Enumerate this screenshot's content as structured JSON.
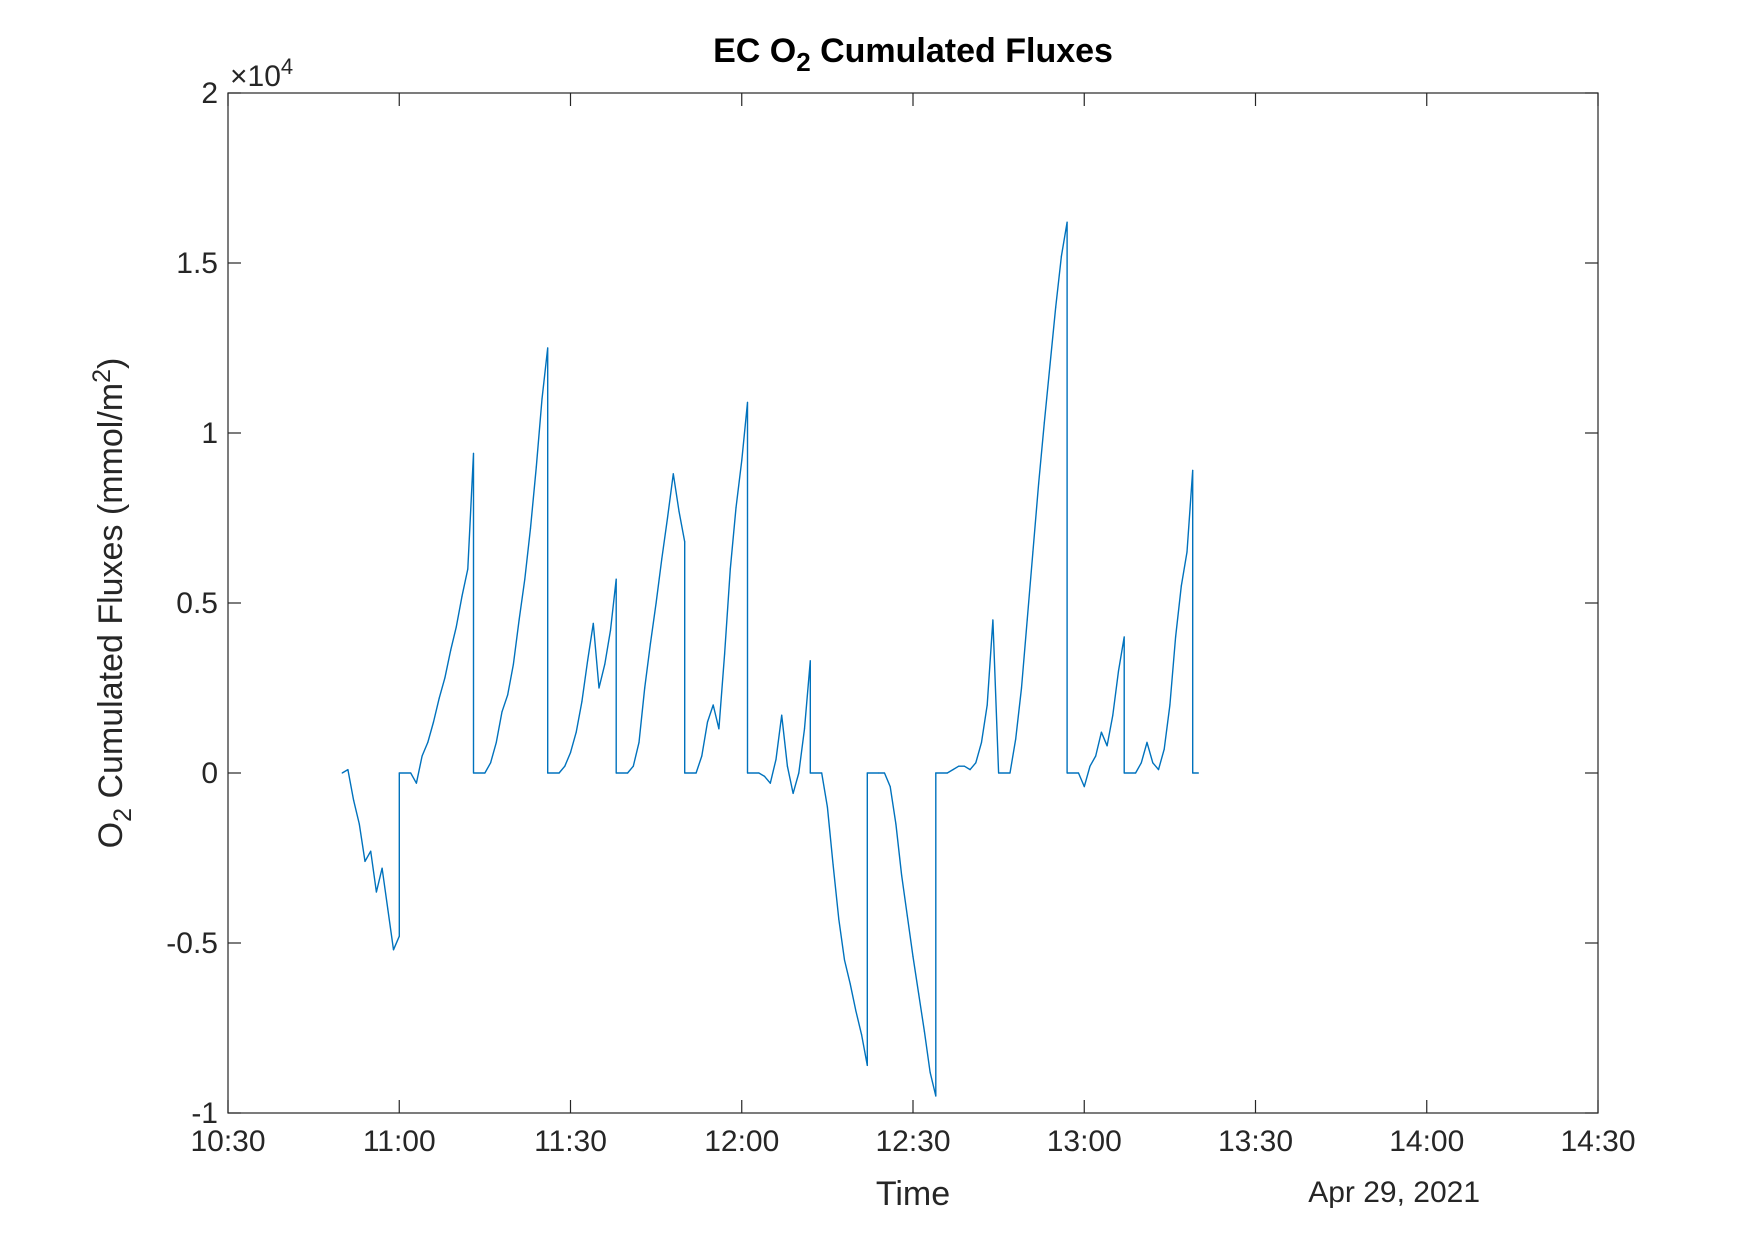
{
  "chart_data": {
    "type": "line",
    "title": "EC O2 Cumulated Fluxes",
    "title_parts": {
      "before": "EC O",
      "sub": "2",
      "after": " Cumulated Fluxes"
    },
    "xlabel": "Time",
    "ylabel": "O2 Cumulated Fluxes (mmol/m2)",
    "ylabel_parts": {
      "a": "O",
      "sub": "2",
      "b": " Cumulated Fluxes (mmol/m",
      "sup": "2",
      "c": ")"
    },
    "x_secondary_label": "Apr 29, 2021",
    "y_exponent_label": {
      "prefix": "×10",
      "exp": "4"
    },
    "xlim": [
      "10:30",
      "14:30"
    ],
    "ylim": [
      -10000,
      20000
    ],
    "x_ticks": [
      "10:30",
      "11:00",
      "11:30",
      "12:00",
      "12:30",
      "13:00",
      "13:30",
      "14:00",
      "14:30"
    ],
    "y_ticks": [
      {
        "value": -10000,
        "label": "-1"
      },
      {
        "value": -5000,
        "label": "-0.5"
      },
      {
        "value": 0,
        "label": "0"
      },
      {
        "value": 5000,
        "label": "0.5"
      },
      {
        "value": 10000,
        "label": "1"
      },
      {
        "value": 15000,
        "label": "1.5"
      },
      {
        "value": 20000,
        "label": "2"
      }
    ],
    "grid": false,
    "line_color": "#0072BD",
    "series": [
      {
        "values": [
          [
            "10:50",
            0
          ],
          [
            "10:51",
            100
          ],
          [
            "10:52",
            -800
          ],
          [
            "10:53",
            -1500
          ],
          [
            "10:54",
            -2600
          ],
          [
            "10:55",
            -2300
          ],
          [
            "10:56",
            -3500
          ],
          [
            "10:57",
            -2800
          ],
          [
            "10:58",
            -4000
          ],
          [
            "10:59",
            -5200
          ],
          [
            "11:00",
            -4800
          ],
          [
            "11:00",
            0
          ],
          [
            "11:02",
            0
          ],
          [
            "11:03",
            -300
          ],
          [
            "11:04",
            500
          ],
          [
            "11:05",
            900
          ],
          [
            "11:06",
            1500
          ],
          [
            "11:07",
            2200
          ],
          [
            "11:08",
            2800
          ],
          [
            "11:09",
            3600
          ],
          [
            "11:10",
            4300
          ],
          [
            "11:11",
            5200
          ],
          [
            "11:12",
            6000
          ],
          [
            "11:13",
            9400
          ],
          [
            "11:13",
            0
          ],
          [
            "11:15",
            0
          ],
          [
            "11:16",
            300
          ],
          [
            "11:17",
            900
          ],
          [
            "11:18",
            1800
          ],
          [
            "11:19",
            2300
          ],
          [
            "11:20",
            3200
          ],
          [
            "11:21",
            4500
          ],
          [
            "11:22",
            5700
          ],
          [
            "11:23",
            7200
          ],
          [
            "11:24",
            9000
          ],
          [
            "11:25",
            11000
          ],
          [
            "11:26",
            12500
          ],
          [
            "11:26",
            0
          ],
          [
            "11:28",
            0
          ],
          [
            "11:29",
            200
          ],
          [
            "11:30",
            600
          ],
          [
            "11:31",
            1200
          ],
          [
            "11:32",
            2100
          ],
          [
            "11:33",
            3300
          ],
          [
            "11:34",
            4400
          ],
          [
            "11:35",
            2500
          ],
          [
            "11:36",
            3200
          ],
          [
            "11:37",
            4200
          ],
          [
            "11:38",
            5700
          ],
          [
            "11:38",
            0
          ],
          [
            "11:40",
            0
          ],
          [
            "11:41",
            200
          ],
          [
            "11:42",
            900
          ],
          [
            "11:43",
            2500
          ],
          [
            "11:44",
            3800
          ],
          [
            "11:45",
            5000
          ],
          [
            "11:46",
            6300
          ],
          [
            "11:47",
            7500
          ],
          [
            "11:48",
            8800
          ],
          [
            "11:49",
            7700
          ],
          [
            "11:50",
            6800
          ],
          [
            "11:50",
            0
          ],
          [
            "11:52",
            0
          ],
          [
            "11:53",
            500
          ],
          [
            "11:54",
            1500
          ],
          [
            "11:55",
            2000
          ],
          [
            "11:56",
            1300
          ],
          [
            "11:57",
            3500
          ],
          [
            "11:58",
            6000
          ],
          [
            "11:59",
            7800
          ],
          [
            "12:00",
            9200
          ],
          [
            "12:01",
            10900
          ],
          [
            "12:01",
            0
          ],
          [
            "12:03",
            0
          ],
          [
            "12:04",
            -100
          ],
          [
            "12:05",
            -300
          ],
          [
            "12:06",
            400
          ],
          [
            "12:07",
            1700
          ],
          [
            "12:08",
            200
          ],
          [
            "12:09",
            -600
          ],
          [
            "12:10",
            0
          ],
          [
            "12:11",
            1300
          ],
          [
            "12:12",
            3300
          ],
          [
            "12:12",
            0
          ],
          [
            "12:14",
            0
          ],
          [
            "12:15",
            -1000
          ],
          [
            "12:16",
            -2700
          ],
          [
            "12:17",
            -4300
          ],
          [
            "12:18",
            -5500
          ],
          [
            "12:19",
            -6200
          ],
          [
            "12:20",
            -7000
          ],
          [
            "12:21",
            -7700
          ],
          [
            "12:22",
            -8600
          ],
          [
            "12:22",
            0
          ],
          [
            "12:24",
            0
          ],
          [
            "12:25",
            0
          ],
          [
            "12:26",
            -400
          ],
          [
            "12:27",
            -1500
          ],
          [
            "12:28",
            -3000
          ],
          [
            "12:29",
            -4200
          ],
          [
            "12:30",
            -5400
          ],
          [
            "12:31",
            -6500
          ],
          [
            "12:32",
            -7600
          ],
          [
            "12:33",
            -8800
          ],
          [
            "12:34",
            -9500
          ],
          [
            "12:34",
            0
          ],
          [
            "12:36",
            0
          ],
          [
            "12:37",
            100
          ],
          [
            "12:38",
            200
          ],
          [
            "12:39",
            200
          ],
          [
            "12:40",
            100
          ],
          [
            "12:41",
            300
          ],
          [
            "12:42",
            900
          ],
          [
            "12:43",
            2000
          ],
          [
            "12:44",
            4500
          ],
          [
            "12:45",
            0
          ],
          [
            "12:47",
            0
          ],
          [
            "12:48",
            1000
          ],
          [
            "12:49",
            2500
          ],
          [
            "12:50",
            4500
          ],
          [
            "12:51",
            6500
          ],
          [
            "12:52",
            8500
          ],
          [
            "12:53",
            10300
          ],
          [
            "12:54",
            12000
          ],
          [
            "12:55",
            13700
          ],
          [
            "12:56",
            15200
          ],
          [
            "12:57",
            16200
          ],
          [
            "12:57",
            0
          ],
          [
            "12:59",
            0
          ],
          [
            "13:00",
            -400
          ],
          [
            "13:01",
            200
          ],
          [
            "13:02",
            500
          ],
          [
            "13:03",
            1200
          ],
          [
            "13:04",
            800
          ],
          [
            "13:05",
            1700
          ],
          [
            "13:06",
            3000
          ],
          [
            "13:07",
            4000
          ],
          [
            "13:07",
            0
          ],
          [
            "13:09",
            0
          ],
          [
            "13:10",
            300
          ],
          [
            "13:11",
            900
          ],
          [
            "13:12",
            300
          ],
          [
            "13:13",
            100
          ],
          [
            "13:14",
            700
          ],
          [
            "13:15",
            2000
          ],
          [
            "13:16",
            4000
          ],
          [
            "13:17",
            5500
          ],
          [
            "13:18",
            6500
          ],
          [
            "13:19",
            8900
          ],
          [
            "13:19",
            0
          ],
          [
            "13:20",
            0
          ]
        ]
      }
    ]
  }
}
